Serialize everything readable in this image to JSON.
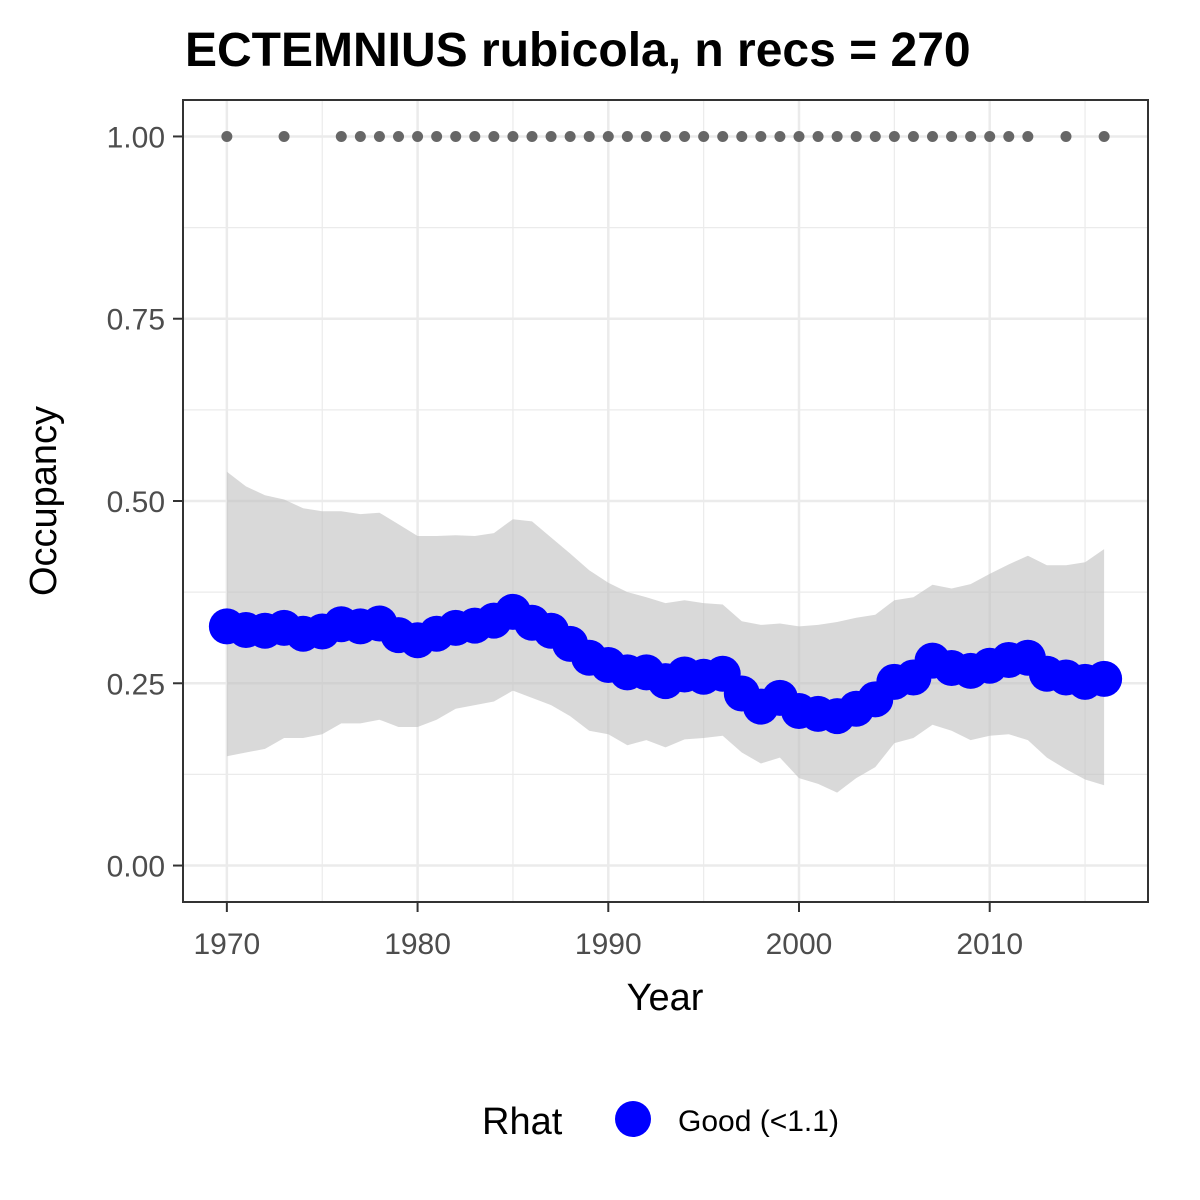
{
  "chart_data": {
    "type": "line",
    "title": "ECTEMNIUS rubicola, n recs = 270",
    "xlabel": "Year",
    "ylabel": "Occupancy",
    "xlim": [
      1967.7,
      2018.3
    ],
    "ylim": [
      -0.05,
      1.05
    ],
    "x_ticks": [
      1970,
      1980,
      1990,
      2000,
      2010
    ],
    "x_tick_labels": [
      "1970",
      "1980",
      "1990",
      "2000",
      "2010"
    ],
    "y_ticks": [
      0,
      0.25,
      0.5,
      0.75,
      1.0
    ],
    "y_tick_labels": [
      "0.00",
      "0.25",
      "0.50",
      "0.75",
      "1.00"
    ],
    "grid": true,
    "legend": {
      "title": "Rhat",
      "position": "bottom",
      "entries": [
        "Good (<1.1)"
      ]
    },
    "colors": {
      "line": "#0000ff",
      "ribbon": "#bfbfbf",
      "records": "#666666",
      "grid": "#ebebeb",
      "border": "#333333"
    },
    "series": [
      {
        "name": "Good (<1.1)",
        "x": [
          1970,
          1971,
          1972,
          1973,
          1974,
          1975,
          1976,
          1977,
          1978,
          1979,
          1980,
          1981,
          1982,
          1983,
          1984,
          1985,
          1986,
          1987,
          1988,
          1989,
          1990,
          1991,
          1992,
          1993,
          1994,
          1995,
          1996,
          1997,
          1998,
          1999,
          2000,
          2001,
          2002,
          2003,
          2004,
          2005,
          2006,
          2007,
          2008,
          2009,
          2010,
          2011,
          2012,
          2013,
          2014,
          2015,
          2016
        ],
        "y": [
          0.328,
          0.323,
          0.322,
          0.326,
          0.318,
          0.321,
          0.331,
          0.328,
          0.332,
          0.316,
          0.309,
          0.318,
          0.326,
          0.329,
          0.336,
          0.348,
          0.333,
          0.322,
          0.304,
          0.285,
          0.275,
          0.265,
          0.265,
          0.253,
          0.262,
          0.259,
          0.263,
          0.236,
          0.218,
          0.23,
          0.212,
          0.208,
          0.205,
          0.215,
          0.228,
          0.252,
          0.258,
          0.281,
          0.271,
          0.267,
          0.274,
          0.282,
          0.285,
          0.263,
          0.258,
          0.252,
          0.256
        ],
        "lower": [
          0.15,
          0.155,
          0.16,
          0.175,
          0.175,
          0.18,
          0.195,
          0.195,
          0.2,
          0.19,
          0.19,
          0.2,
          0.215,
          0.22,
          0.225,
          0.24,
          0.23,
          0.22,
          0.205,
          0.185,
          0.18,
          0.165,
          0.172,
          0.162,
          0.173,
          0.175,
          0.178,
          0.155,
          0.14,
          0.148,
          0.12,
          0.112,
          0.1,
          0.12,
          0.135,
          0.168,
          0.175,
          0.193,
          0.185,
          0.172,
          0.178,
          0.18,
          0.172,
          0.148,
          0.132,
          0.118,
          0.11
        ],
        "upper": [
          0.54,
          0.52,
          0.508,
          0.502,
          0.49,
          0.486,
          0.486,
          0.482,
          0.484,
          0.468,
          0.452,
          0.452,
          0.453,
          0.452,
          0.456,
          0.475,
          0.472,
          0.45,
          0.428,
          0.405,
          0.388,
          0.375,
          0.368,
          0.36,
          0.364,
          0.36,
          0.358,
          0.335,
          0.33,
          0.332,
          0.328,
          0.33,
          0.334,
          0.34,
          0.344,
          0.364,
          0.368,
          0.385,
          0.38,
          0.386,
          0.4,
          0.413,
          0.425,
          0.412,
          0.412,
          0.416,
          0.434
        ]
      }
    ],
    "records": {
      "y": 1.0,
      "x": [
        1970,
        1973,
        1976,
        1977,
        1978,
        1979,
        1980,
        1981,
        1982,
        1983,
        1984,
        1985,
        1986,
        1987,
        1988,
        1989,
        1990,
        1991,
        1992,
        1993,
        1994,
        1995,
        1996,
        1997,
        1998,
        1999,
        2000,
        2001,
        2002,
        2003,
        2004,
        2005,
        2006,
        2007,
        2008,
        2009,
        2010,
        2011,
        2012,
        2014,
        2016
      ]
    }
  }
}
